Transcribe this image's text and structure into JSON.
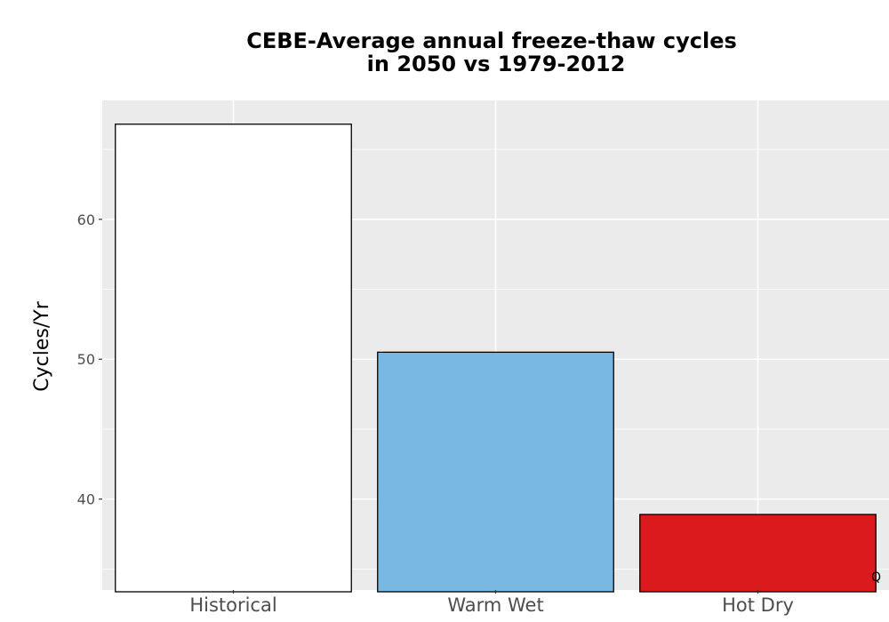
{
  "chart_data": {
    "type": "bar",
    "title_lines": [
      "CEBE-Average annual freeze-thaw cycles",
      "in 2050 vs 1979-2012"
    ],
    "xlabel": "",
    "ylabel": "Cycles/Yr",
    "categories": [
      "Historical",
      "Warm Wet",
      "Hot Dry"
    ],
    "values": [
      66.8,
      50.5,
      38.9
    ],
    "colors": [
      "#ffffff",
      "#79b8e2",
      "#da1a1c"
    ],
    "bar_outline": "#000000",
    "ylim": [
      33.5,
      68.5
    ],
    "yticks": [
      40,
      50,
      60
    ],
    "ytick_labels": [
      "40",
      "50",
      "60"
    ],
    "grid": true,
    "panel_background": "#ebebeb",
    "corner_note": "Q"
  }
}
